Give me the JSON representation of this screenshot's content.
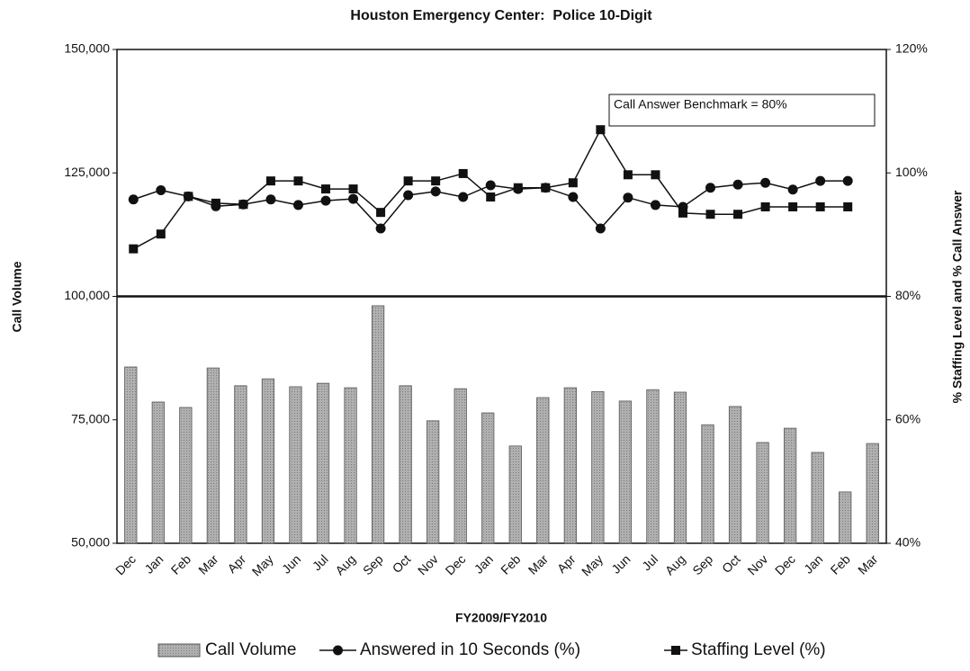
{
  "chart_data": {
    "type": "bar",
    "title": "Houston Emergency Center:  Police 10-Digit",
    "x_label": "FY2009/FY2010",
    "y_label": "Call Volume",
    "y2_label": "% Staffing Level and % Call Answer",
    "annotation": "Call Answer Benchmark = 80%",
    "benchmark": 80,
    "categories": [
      "Dec",
      "Jan",
      "Feb",
      "Mar",
      "Apr",
      "May",
      "Jun",
      "Jul",
      "Aug",
      "Sep",
      "Oct",
      "Nov",
      "Dec",
      "Jan",
      "Feb",
      "Mar",
      "Apr",
      "May",
      "Jun",
      "Jul",
      "Aug",
      "Sep",
      "Oct",
      "Nov",
      "Dec",
      "Jan",
      "Feb",
      "Mar"
    ],
    "series": [
      {
        "name": "Call Volume",
        "type": "bar",
        "color": "#a6a6a6",
        "axis": "y",
        "values": [
          85700,
          78600,
          77500,
          85500,
          81900,
          83300,
          81700,
          82400,
          81500,
          98100,
          81900,
          74800,
          81300,
          76400,
          69700,
          79500,
          81500,
          80700,
          78800,
          81100,
          80600,
          74000,
          77700,
          70400,
          73300,
          68400,
          60400,
          70200
        ]
      },
      {
        "name": "Answered in 10 Seconds (%)",
        "type": "line",
        "marker": "circle",
        "color": "#111111",
        "axis": "y2",
        "values": [
          95.7,
          97.2,
          96.2,
          94.6,
          94.9,
          95.7,
          94.8,
          95.5,
          95.8,
          91.0,
          96.4,
          97.0,
          96.1,
          98.0,
          97.4,
          97.6,
          96.1,
          91.0,
          96.0,
          94.8,
          94.5,
          97.6,
          98.1,
          98.4,
          97.3,
          98.7,
          98.7,
          null
        ]
      },
      {
        "name": "Staffing Level (%)",
        "type": "line",
        "marker": "square",
        "color": "#111111",
        "axis": "y2",
        "values": [
          87.7,
          90.1,
          96.2,
          95.1,
          94.9,
          98.7,
          98.7,
          97.4,
          97.4,
          93.6,
          98.7,
          98.7,
          99.9,
          96.1,
          97.6,
          97.6,
          98.4,
          107.0,
          99.7,
          99.7,
          93.5,
          93.3,
          93.3,
          94.5,
          94.5,
          94.5,
          94.5,
          null
        ]
      }
    ],
    "ylim": [
      50000,
      150000
    ],
    "yticks": [
      {
        "value": 50000,
        "label": "50,000"
      },
      {
        "value": 75000,
        "label": "75,000"
      },
      {
        "value": 100000,
        "label": "100,000"
      },
      {
        "value": 125000,
        "label": "125,000"
      },
      {
        "value": 150000,
        "label": "150,000"
      }
    ],
    "y2lim": [
      40,
      120
    ],
    "y2ticks": [
      {
        "value": 40,
        "label": "40%"
      },
      {
        "value": 60,
        "label": "60%"
      },
      {
        "value": 80,
        "label": "80%"
      },
      {
        "value": 100,
        "label": "100%"
      },
      {
        "value": 120,
        "label": "120%"
      }
    ],
    "grid": false,
    "legend": "bottom"
  }
}
